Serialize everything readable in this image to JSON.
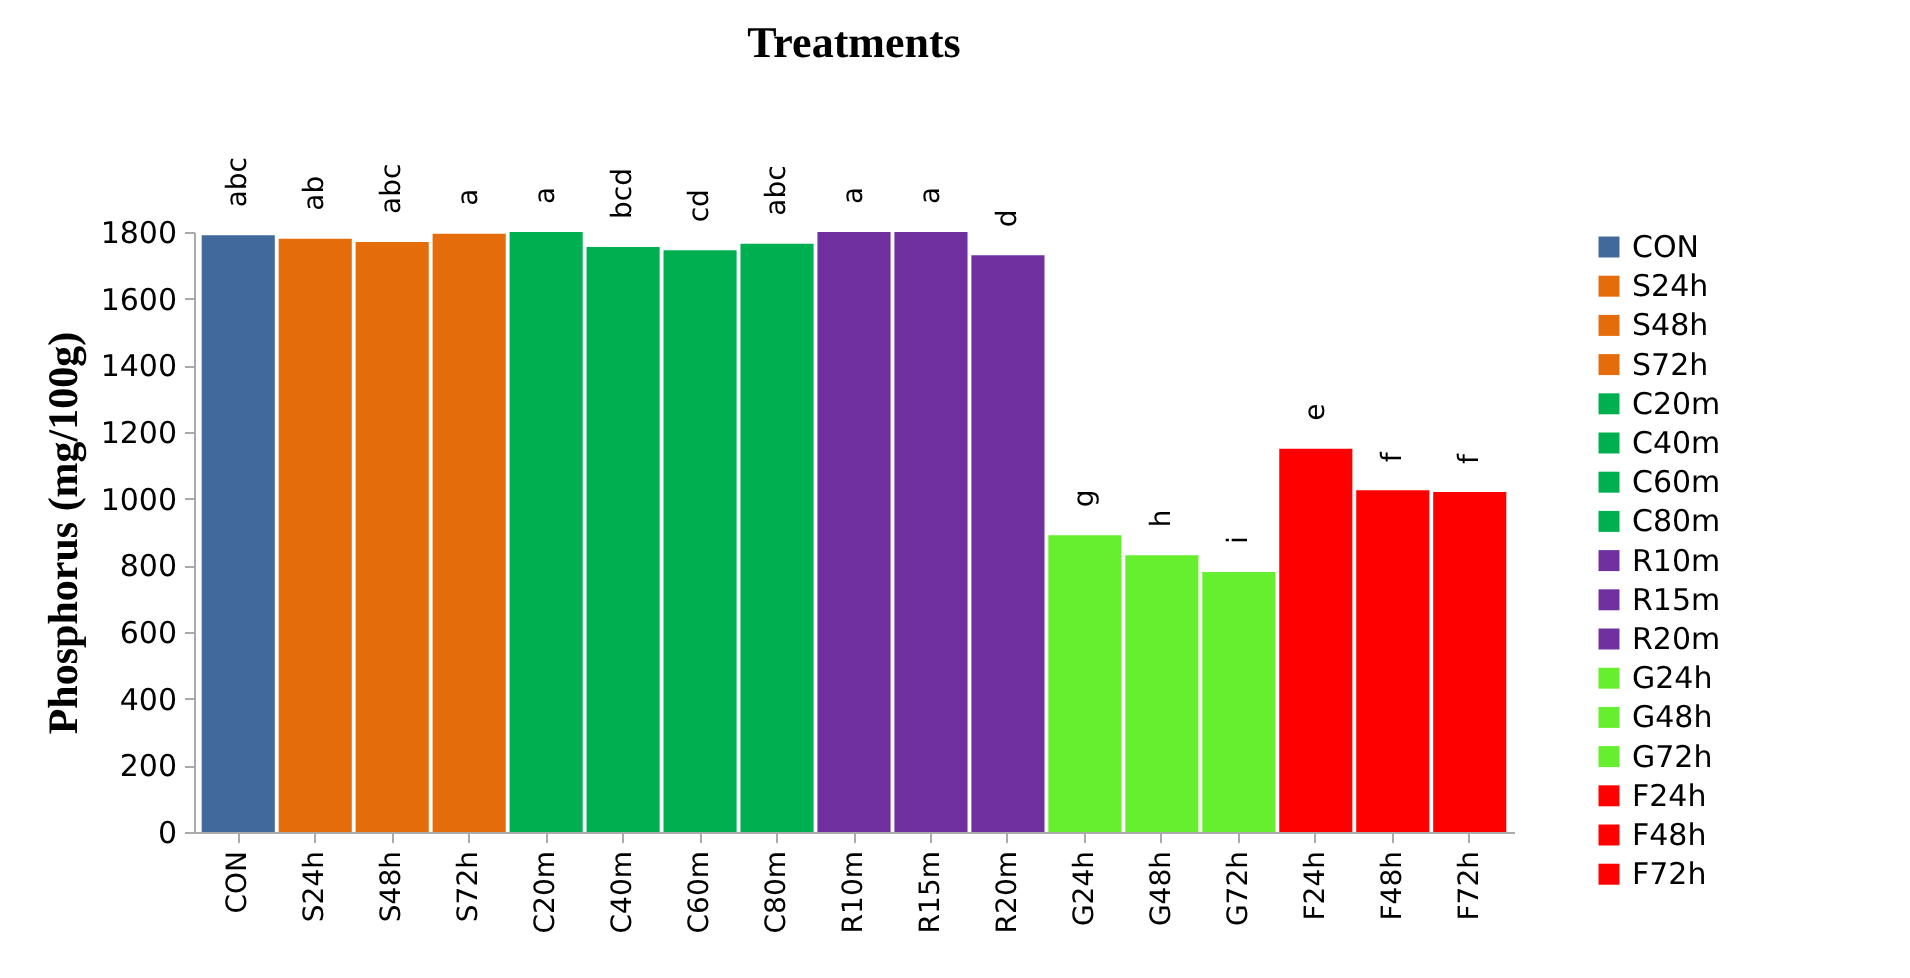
{
  "chart_data": {
    "type": "bar",
    "title": "Treatments",
    "ylabel": "Phosphorus (mg/100g)",
    "categories": [
      "CON",
      "S24h",
      "S48h",
      "S72h",
      "C20m",
      "C40m",
      "C60m",
      "C80m",
      "R10m",
      "R15m",
      "R20m",
      "G24h",
      "G48h",
      "G72h",
      "F24h",
      "F48h",
      "F72h"
    ],
    "series": [
      {
        "name": "CON",
        "color": "#41699c",
        "values": [
          1790,
          null,
          null,
          null,
          null,
          null,
          null,
          null,
          null,
          null,
          null,
          null,
          null,
          null,
          null,
          null,
          null
        ],
        "value_labels": [
          "abc",
          null,
          null,
          null,
          null,
          null,
          null,
          null,
          null,
          null,
          null,
          null,
          null,
          null,
          null,
          null,
          null
        ]
      },
      {
        "name": "S24h",
        "color": "#e46c0a",
        "values": [
          null,
          1780,
          null,
          null,
          null,
          null,
          null,
          null,
          null,
          null,
          null,
          null,
          null,
          null,
          null,
          null,
          null
        ],
        "value_labels": [
          null,
          "ab",
          null,
          null,
          null,
          null,
          null,
          null,
          null,
          null,
          null,
          null,
          null,
          null,
          null,
          null,
          null
        ]
      },
      {
        "name": "S48h",
        "color": "#e46c0a",
        "values": [
          null,
          null,
          1770,
          null,
          null,
          null,
          null,
          null,
          null,
          null,
          null,
          null,
          null,
          null,
          null,
          null,
          null
        ],
        "value_labels": [
          null,
          null,
          "abc",
          null,
          null,
          null,
          null,
          null,
          null,
          null,
          null,
          null,
          null,
          null,
          null,
          null,
          null
        ]
      },
      {
        "name": "S72h",
        "color": "#e46c0a",
        "values": [
          null,
          null,
          null,
          1795,
          null,
          null,
          null,
          null,
          null,
          null,
          null,
          null,
          null,
          null,
          null,
          null,
          null
        ],
        "value_labels": [
          null,
          null,
          null,
          "a",
          null,
          null,
          null,
          null,
          null,
          null,
          null,
          null,
          null,
          null,
          null,
          null,
          null
        ]
      },
      {
        "name": "C20m",
        "color": "#00b050",
        "values": [
          null,
          null,
          null,
          null,
          1800,
          null,
          null,
          null,
          null,
          null,
          null,
          null,
          null,
          null,
          null,
          null,
          null
        ],
        "value_labels": [
          null,
          null,
          null,
          null,
          "a",
          null,
          null,
          null,
          null,
          null,
          null,
          null,
          null,
          null,
          null,
          null,
          null
        ]
      },
      {
        "name": "C40m",
        "color": "#00b050",
        "values": [
          null,
          null,
          null,
          null,
          null,
          1755,
          null,
          null,
          null,
          null,
          null,
          null,
          null,
          null,
          null,
          null,
          null
        ],
        "value_labels": [
          null,
          null,
          null,
          null,
          null,
          "bcd",
          null,
          null,
          null,
          null,
          null,
          null,
          null,
          null,
          null,
          null,
          null
        ]
      },
      {
        "name": "C60m",
        "color": "#00b050",
        "values": [
          null,
          null,
          null,
          null,
          null,
          null,
          1745,
          null,
          null,
          null,
          null,
          null,
          null,
          null,
          null,
          null,
          null
        ],
        "value_labels": [
          null,
          null,
          null,
          null,
          null,
          null,
          "cd",
          null,
          null,
          null,
          null,
          null,
          null,
          null,
          null,
          null,
          null
        ]
      },
      {
        "name": "C80m",
        "color": "#00b050",
        "values": [
          null,
          null,
          null,
          null,
          null,
          null,
          null,
          1765,
          null,
          null,
          null,
          null,
          null,
          null,
          null,
          null,
          null
        ],
        "value_labels": [
          null,
          null,
          null,
          null,
          null,
          null,
          null,
          "abc",
          null,
          null,
          null,
          null,
          null,
          null,
          null,
          null,
          null
        ]
      },
      {
        "name": "R10m",
        "color": "#7030a0",
        "values": [
          null,
          null,
          null,
          null,
          null,
          null,
          null,
          null,
          1800,
          null,
          null,
          null,
          null,
          null,
          null,
          null,
          null
        ],
        "value_labels": [
          null,
          null,
          null,
          null,
          null,
          null,
          null,
          null,
          "a",
          null,
          null,
          null,
          null,
          null,
          null,
          null,
          null
        ]
      },
      {
        "name": "R15m",
        "color": "#7030a0",
        "values": [
          null,
          null,
          null,
          null,
          null,
          null,
          null,
          null,
          null,
          1800,
          null,
          null,
          null,
          null,
          null,
          null,
          null
        ],
        "value_labels": [
          null,
          null,
          null,
          null,
          null,
          null,
          null,
          null,
          null,
          "a",
          null,
          null,
          null,
          null,
          null,
          null,
          null
        ]
      },
      {
        "name": "R20m",
        "color": "#7030a0",
        "values": [
          null,
          null,
          null,
          null,
          null,
          null,
          null,
          null,
          null,
          null,
          1730,
          null,
          null,
          null,
          null,
          null,
          null
        ],
        "value_labels": [
          null,
          null,
          null,
          null,
          null,
          null,
          null,
          null,
          null,
          null,
          "d",
          null,
          null,
          null,
          null,
          null,
          null
        ]
      },
      {
        "name": "G24h",
        "color": "#66ef2f",
        "values": [
          null,
          null,
          null,
          null,
          null,
          null,
          null,
          null,
          null,
          null,
          null,
          890,
          null,
          null,
          null,
          null,
          null
        ],
        "value_labels": [
          null,
          null,
          null,
          null,
          null,
          null,
          null,
          null,
          null,
          null,
          null,
          "g",
          null,
          null,
          null,
          null,
          null
        ]
      },
      {
        "name": "G48h",
        "color": "#66ef2f",
        "values": [
          null,
          null,
          null,
          null,
          null,
          null,
          null,
          null,
          null,
          null,
          null,
          null,
          830,
          null,
          null,
          null,
          null
        ],
        "value_labels": [
          null,
          null,
          null,
          null,
          null,
          null,
          null,
          null,
          null,
          null,
          null,
          null,
          "h",
          null,
          null,
          null,
          null
        ]
      },
      {
        "name": "G72h",
        "color": "#66ef2f",
        "values": [
          null,
          null,
          null,
          null,
          null,
          null,
          null,
          null,
          null,
          null,
          null,
          null,
          null,
          780,
          null,
          null,
          null
        ],
        "value_labels": [
          null,
          null,
          null,
          null,
          null,
          null,
          null,
          null,
          null,
          null,
          null,
          null,
          null,
          "i",
          null,
          null,
          null
        ]
      },
      {
        "name": "F24h",
        "color": "#ff0000",
        "values": [
          null,
          null,
          null,
          null,
          null,
          null,
          null,
          null,
          null,
          null,
          null,
          null,
          null,
          null,
          1150,
          null,
          null
        ],
        "value_labels": [
          null,
          null,
          null,
          null,
          null,
          null,
          null,
          null,
          null,
          null,
          null,
          null,
          null,
          null,
          "e",
          null,
          null
        ]
      },
      {
        "name": "F48h",
        "color": "#ff0000",
        "values": [
          null,
          null,
          null,
          null,
          null,
          null,
          null,
          null,
          null,
          null,
          null,
          null,
          null,
          null,
          null,
          1025,
          null
        ],
        "value_labels": [
          null,
          null,
          null,
          null,
          null,
          null,
          null,
          null,
          null,
          null,
          null,
          null,
          null,
          null,
          null,
          "f",
          null
        ]
      },
      {
        "name": "F72h",
        "color": "#ff0000",
        "values": [
          null,
          null,
          null,
          null,
          null,
          null,
          null,
          null,
          null,
          null,
          null,
          null,
          null,
          null,
          null,
          null,
          1020
        ],
        "value_labels": [
          null,
          null,
          null,
          null,
          null,
          null,
          null,
          null,
          null,
          null,
          null,
          null,
          null,
          null,
          null,
          null,
          "f"
        ]
      }
    ],
    "ylim": [
      0,
      1800
    ],
    "yticks": [
      0,
      200,
      400,
      600,
      800,
      1000,
      1200,
      1400,
      1600,
      1800
    ],
    "grid": false,
    "legend": "right"
  }
}
